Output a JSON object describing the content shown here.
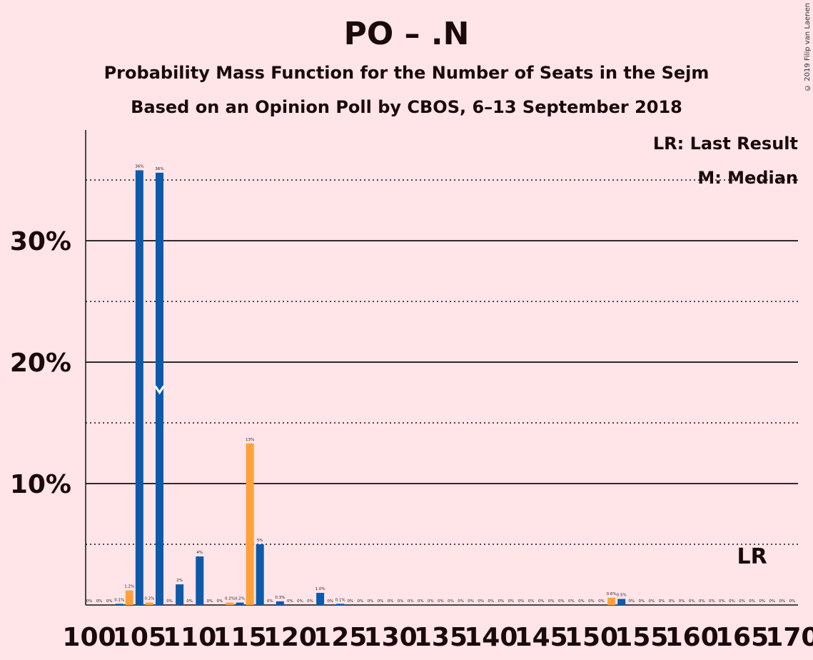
{
  "chart_data": {
    "type": "bar",
    "title": "PO – .N",
    "subtitle": "Probability Mass Function for the Number of Seats in the Sejm",
    "subtitle2": "Based on an Opinion Poll by CBOS, 6–13 September 2018",
    "copyright": "© 2019 Filip van Laenen",
    "legend": {
      "last_result": "LR: Last Result",
      "median": "M: Median",
      "placement": "top-right"
    },
    "x_ticks": [
      100,
      105,
      110,
      115,
      120,
      125,
      130,
      135,
      140,
      145,
      150,
      155,
      160,
      165,
      170
    ],
    "y_ticks": [
      {
        "value": 10,
        "label": "10%"
      },
      {
        "value": 20,
        "label": "20%"
      },
      {
        "value": 30,
        "label": "30%"
      }
    ],
    "ylim": [
      0,
      39
    ],
    "xlim": [
      99.5,
      170.5
    ],
    "colors": {
      "blue": "#0b5aab",
      "orange": "#ffa03a",
      "background": "#ffe4e8"
    },
    "median_seat": 107,
    "median_value": 17.5,
    "last_result_seat": 166,
    "last_result_label": "LR",
    "median_label": "M",
    "bars": [
      {
        "x": 100,
        "value": 0,
        "label": "0%"
      },
      {
        "x": 101,
        "value": 0,
        "label": "0%"
      },
      {
        "x": 102,
        "value": 0,
        "label": "0%"
      },
      {
        "x": 103,
        "value": 0.1,
        "label": "0.1%"
      },
      {
        "x": 104,
        "value": 1.2,
        "label": "1.2%"
      },
      {
        "x": 105,
        "value": 35.8,
        "label": "36%"
      },
      {
        "x": 106,
        "value": 0.2,
        "label": "0.2%"
      },
      {
        "x": 107,
        "value": 35.6,
        "label": "36%"
      },
      {
        "x": 108,
        "value": 0,
        "label": "0%"
      },
      {
        "x": 109,
        "value": 1.7,
        "label": "2%"
      },
      {
        "x": 110,
        "value": 0,
        "label": "0%"
      },
      {
        "x": 111,
        "value": 4.0,
        "label": "4%"
      },
      {
        "x": 112,
        "value": 0,
        "label": "0%"
      },
      {
        "x": 113,
        "value": 0,
        "label": "0%"
      },
      {
        "x": 114,
        "value": 0.2,
        "label": "0.2%"
      },
      {
        "x": 115,
        "value": 0.2,
        "label": "0.2%"
      },
      {
        "x": 116,
        "value": 13.3,
        "label": "13%"
      },
      {
        "x": 117,
        "value": 5.0,
        "label": "5%"
      },
      {
        "x": 118,
        "value": 0,
        "label": "0%"
      },
      {
        "x": 119,
        "value": 0.3,
        "label": "0.3%"
      },
      {
        "x": 120,
        "value": 0,
        "label": "0%"
      },
      {
        "x": 121,
        "value": 0,
        "label": "0%"
      },
      {
        "x": 122,
        "value": 0,
        "label": "0%"
      },
      {
        "x": 123,
        "value": 1.0,
        "label": "1.0%"
      },
      {
        "x": 124,
        "value": 0,
        "label": "0%"
      },
      {
        "x": 125,
        "value": 0.1,
        "label": "0.1%"
      },
      {
        "x": 126,
        "value": 0,
        "label": "0%"
      },
      {
        "x": 127,
        "value": 0,
        "label": "0%"
      },
      {
        "x": 128,
        "value": 0,
        "label": "0%"
      },
      {
        "x": 129,
        "value": 0,
        "label": "0%"
      },
      {
        "x": 130,
        "value": 0,
        "label": "0%"
      },
      {
        "x": 131,
        "value": 0,
        "label": "0%"
      },
      {
        "x": 132,
        "value": 0,
        "label": "0%"
      },
      {
        "x": 133,
        "value": 0,
        "label": "0%"
      },
      {
        "x": 134,
        "value": 0,
        "label": "0%"
      },
      {
        "x": 135,
        "value": 0,
        "label": "0%"
      },
      {
        "x": 136,
        "value": 0,
        "label": "0%"
      },
      {
        "x": 137,
        "value": 0,
        "label": "0%"
      },
      {
        "x": 138,
        "value": 0,
        "label": "0%"
      },
      {
        "x": 139,
        "value": 0,
        "label": "0%"
      },
      {
        "x": 140,
        "value": 0,
        "label": "0%"
      },
      {
        "x": 141,
        "value": 0,
        "label": "0%"
      },
      {
        "x": 142,
        "value": 0,
        "label": "0%"
      },
      {
        "x": 143,
        "value": 0,
        "label": "0%"
      },
      {
        "x": 144,
        "value": 0,
        "label": "0%"
      },
      {
        "x": 145,
        "value": 0,
        "label": "0%"
      },
      {
        "x": 146,
        "value": 0,
        "label": "0%"
      },
      {
        "x": 147,
        "value": 0,
        "label": "0%"
      },
      {
        "x": 148,
        "value": 0,
        "label": "0%"
      },
      {
        "x": 149,
        "value": 0,
        "label": "0%"
      },
      {
        "x": 150,
        "value": 0,
        "label": "0%"
      },
      {
        "x": 151,
        "value": 0,
        "label": "0%"
      },
      {
        "x": 152,
        "value": 0.6,
        "label": "0.6%"
      },
      {
        "x": 153,
        "value": 0.5,
        "label": "0.5%"
      },
      {
        "x": 154,
        "value": 0,
        "label": "0%"
      },
      {
        "x": 155,
        "value": 0,
        "label": "0%"
      },
      {
        "x": 156,
        "value": 0,
        "label": "0%"
      },
      {
        "x": 157,
        "value": 0,
        "label": "0%"
      },
      {
        "x": 158,
        "value": 0,
        "label": "0%"
      },
      {
        "x": 159,
        "value": 0,
        "label": "0%"
      },
      {
        "x": 160,
        "value": 0,
        "label": "0%"
      },
      {
        "x": 161,
        "value": 0,
        "label": "0%"
      },
      {
        "x": 162,
        "value": 0,
        "label": "0%"
      },
      {
        "x": 163,
        "value": 0,
        "label": "0%"
      },
      {
        "x": 164,
        "value": 0,
        "label": "0%"
      },
      {
        "x": 165,
        "value": 0,
        "label": "0%"
      },
      {
        "x": 166,
        "value": 0,
        "label": "0%"
      },
      {
        "x": 167,
        "value": 0,
        "label": "0%"
      },
      {
        "x": 168,
        "value": 0,
        "label": "0%"
      },
      {
        "x": 169,
        "value": 0,
        "label": "0%"
      },
      {
        "x": 170,
        "value": 0,
        "label": "0%"
      }
    ],
    "orange_seats": [
      104,
      106,
      114,
      116,
      152
    ]
  }
}
